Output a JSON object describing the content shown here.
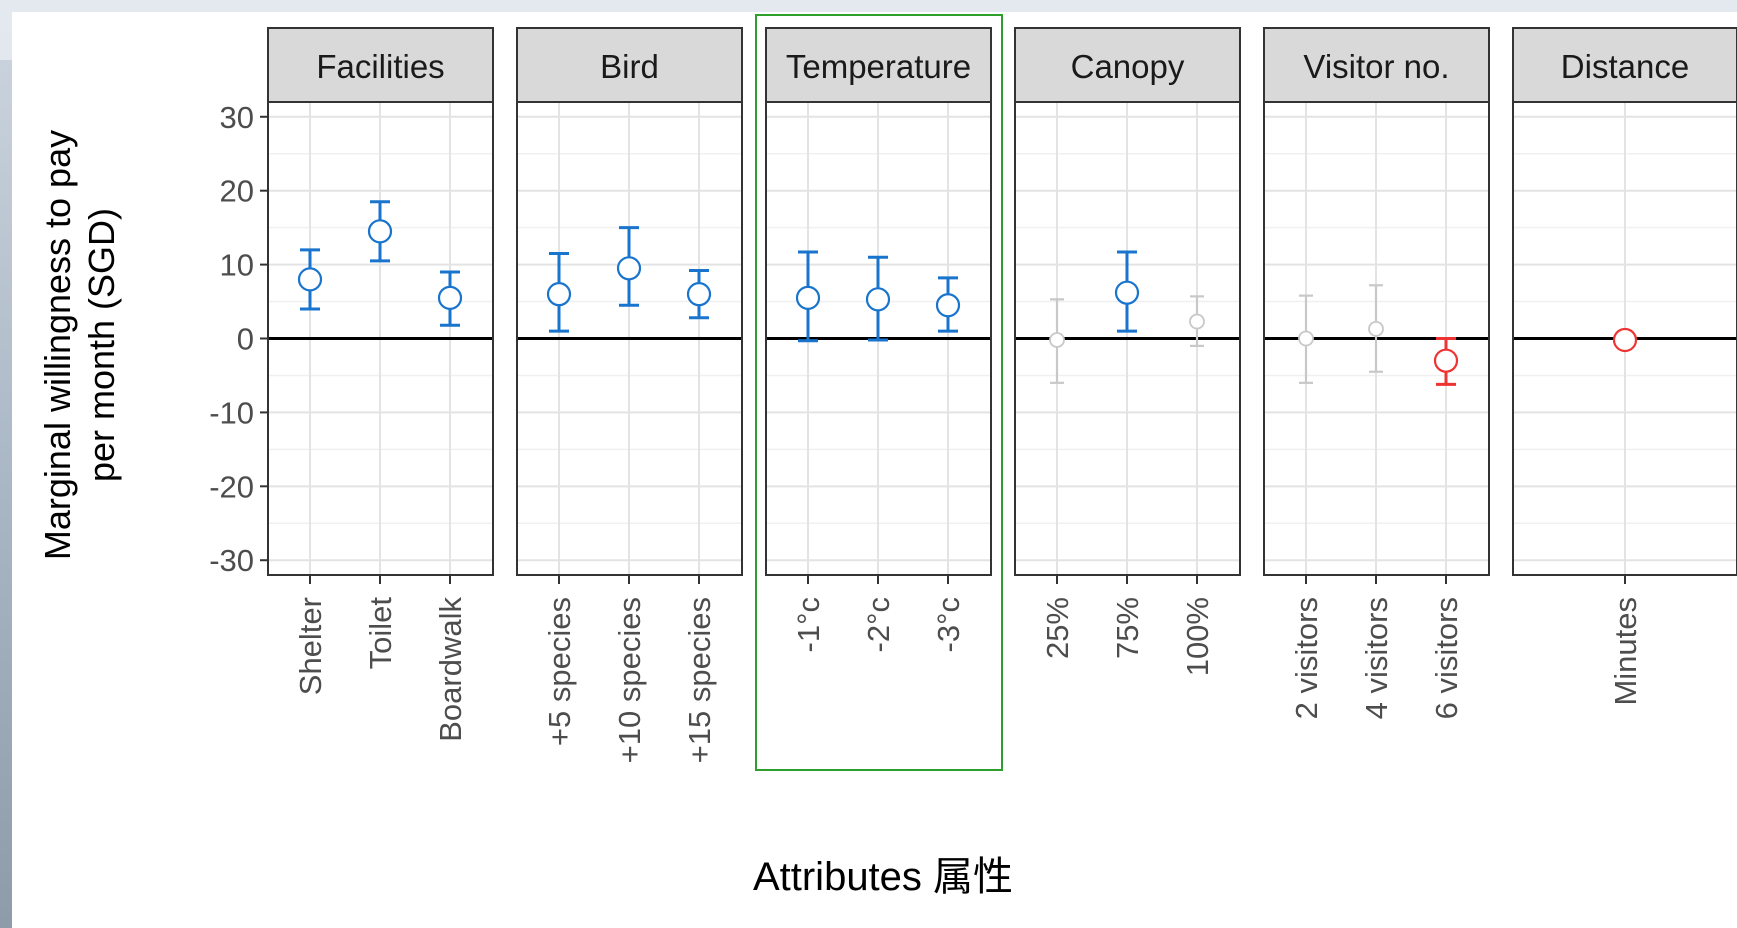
{
  "chart_data": {
    "type": "scatter",
    "subtype": "faceted point estimates with error bars",
    "ylabel_lines": [
      "Marginal willingness to pay",
      "per month (SGD)"
    ],
    "xlabel": "Attributes 属性",
    "ylim": [
      -32,
      32
    ],
    "yticks": [
      30,
      20,
      10,
      0,
      -10,
      -20,
      -30
    ],
    "grid": true,
    "zero_line": true,
    "highlighted_facet": "Temperature",
    "highlight_color": "#2ca02c",
    "colors": {
      "positive": "#1874cd",
      "neutral": "#c8c8c8",
      "negative": "#ee3333"
    },
    "facets": [
      {
        "name": "Facilities",
        "points": [
          {
            "label": "Shelter",
            "value": 8,
            "low": 4,
            "high": 12,
            "status": "positive"
          },
          {
            "label": "Toilet",
            "value": 14.5,
            "low": 10.5,
            "high": 18.5,
            "status": "positive"
          },
          {
            "label": "Boardwalk",
            "value": 5.5,
            "low": 1.8,
            "high": 9,
            "status": "positive"
          }
        ]
      },
      {
        "name": "Bird",
        "points": [
          {
            "label": "+5 species",
            "value": 6,
            "low": 1,
            "high": 11.5,
            "status": "positive"
          },
          {
            "label": "+10 species",
            "value": 9.5,
            "low": 4.5,
            "high": 15,
            "status": "positive"
          },
          {
            "label": "+15 species",
            "value": 6,
            "low": 2.8,
            "high": 9.2,
            "status": "positive"
          }
        ]
      },
      {
        "name": "Temperature",
        "points": [
          {
            "label": "-1°c",
            "value": 5.5,
            "low": -0.3,
            "high": 11.7,
            "status": "positive"
          },
          {
            "label": "-2°c",
            "value": 5.3,
            "low": -0.2,
            "high": 11,
            "status": "positive"
          },
          {
            "label": "-3°c",
            "value": 4.5,
            "low": 1,
            "high": 8.2,
            "status": "positive"
          }
        ]
      },
      {
        "name": "Canopy",
        "points": [
          {
            "label": "25%",
            "value": -0.2,
            "low": -6,
            "high": 5.3,
            "status": "neutral"
          },
          {
            "label": "75%",
            "value": 6.2,
            "low": 1,
            "high": 11.7,
            "status": "positive"
          },
          {
            "label": "100%",
            "value": 2.3,
            "low": -1,
            "high": 5.7,
            "status": "neutral"
          }
        ]
      },
      {
        "name": "Visitor no.",
        "points": [
          {
            "label": "2 visitors",
            "value": 0,
            "low": -6,
            "high": 5.8,
            "status": "neutral"
          },
          {
            "label": "4 visitors",
            "value": 1.3,
            "low": -4.5,
            "high": 7.2,
            "status": "neutral"
          },
          {
            "label": "6 visitors",
            "value": -3,
            "low": -6.2,
            "high": 0,
            "status": "negative"
          }
        ]
      },
      {
        "name": "Distance",
        "points": [
          {
            "label": "Minutes",
            "value": -0.2,
            "low": -0.5,
            "high": 0.1,
            "status": "negative"
          }
        ]
      }
    ]
  }
}
